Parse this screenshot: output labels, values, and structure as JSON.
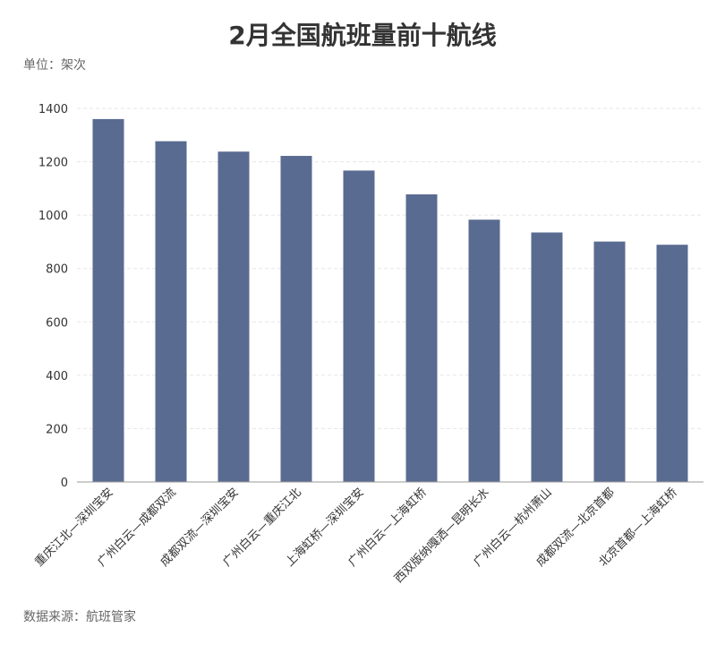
{
  "chart_data": {
    "type": "bar",
    "title": "2月全国航班量前十航线",
    "unit_label": "单位：架次",
    "source": "数据来源：航班管家",
    "categories": [
      "重庆江北—深圳宝安",
      "广州白云—成都双流",
      "成都双流—深圳宝安",
      "广州白云—重庆江北",
      "上海虹桥—深圳宝安",
      "广州白云—上海虹桥",
      "西双版纳嘎洒—昆明长水",
      "广州白云—杭州萧山",
      "成都双流—北京首都",
      "北京首都—上海虹桥"
    ],
    "values": [
      1360,
      1277,
      1238,
      1222,
      1167,
      1078,
      983,
      935,
      901,
      889
    ],
    "ylim": [
      0,
      1400
    ],
    "yticks": [
      0,
      200,
      400,
      600,
      800,
      1000,
      1200,
      1400
    ],
    "grid": true,
    "bar_color": "#5a6b91",
    "grid_color": "#e5e5e5"
  }
}
